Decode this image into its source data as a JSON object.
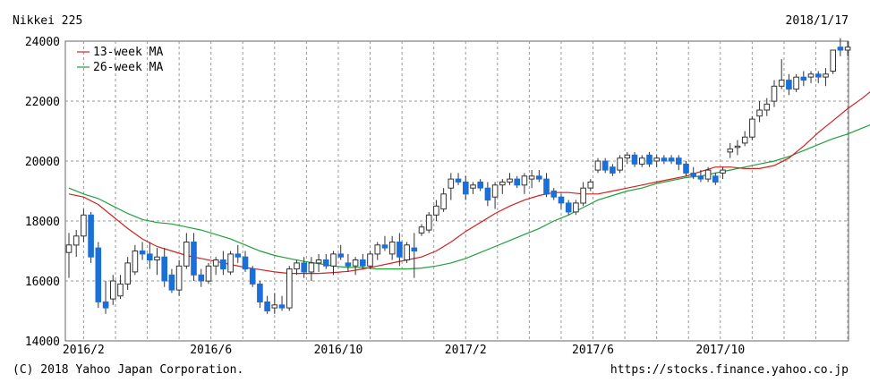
{
  "header": {
    "title": "Nikkei 225",
    "date": "2018/1/17"
  },
  "footer": {
    "copyright": "(C) 2018 Yahoo Japan Corporation.",
    "url": "https://stocks.finance.yahoo.co.jp"
  },
  "colors": {
    "up": "#ffffff",
    "down": "#1a6fd8",
    "wick": "#333333",
    "ma13": "#d42020",
    "ma26": "#1fa03c",
    "grid": "#9a9a9a"
  },
  "chart_data": {
    "type": "candlestick",
    "title": "Nikkei 225",
    "ylim": [
      14000,
      24000
    ],
    "yticks": [
      14000,
      16000,
      18000,
      20000,
      22000,
      24000
    ],
    "yticklabels": [
      "14000",
      "16000",
      "18000",
      "20000",
      "22000",
      "24000"
    ],
    "xticklabels": [
      "2016/2",
      "2016/6",
      "2016/10",
      "2017/2",
      "2017/6",
      "2017/10"
    ],
    "grid": true,
    "legend_position": "top-left",
    "legend": [
      "13-week MA",
      "26-week MA"
    ],
    "candles": [
      [
        16950,
        17600,
        16100,
        17200
      ],
      [
        17200,
        17700,
        16800,
        17500
      ],
      [
        17500,
        18400,
        17300,
        18200
      ],
      [
        18200,
        18300,
        16600,
        16800
      ],
      [
        17100,
        17300,
        15100,
        15300
      ],
      [
        15300,
        16000,
        14900,
        15100
      ],
      [
        15400,
        16200,
        15200,
        16000
      ],
      [
        15500,
        16200,
        15400,
        15900
      ],
      [
        15900,
        16800,
        15700,
        16600
      ],
      [
        16300,
        17200,
        16200,
        17000
      ],
      [
        17000,
        17300,
        16700,
        16900
      ],
      [
        16900,
        17300,
        16400,
        16700
      ],
      [
        16700,
        17100,
        16200,
        16800
      ],
      [
        16800,
        17100,
        15800,
        16000
      ],
      [
        16200,
        16400,
        15600,
        15700
      ],
      [
        15700,
        16700,
        15500,
        16500
      ],
      [
        16500,
        17600,
        16400,
        17300
      ],
      [
        17300,
        17600,
        16000,
        16200
      ],
      [
        16200,
        16400,
        15800,
        16000
      ],
      [
        16000,
        16600,
        15900,
        16500
      ],
      [
        16500,
        16800,
        16200,
        16700
      ],
      [
        16700,
        17000,
        16200,
        16400
      ],
      [
        16300,
        17000,
        16200,
        16900
      ],
      [
        16900,
        17200,
        16600,
        16800
      ],
      [
        16800,
        17000,
        16300,
        16400
      ],
      [
        16400,
        16500,
        15800,
        15900
      ],
      [
        15900,
        16000,
        15100,
        15300
      ],
      [
        15300,
        15500,
        14900,
        15000
      ],
      [
        15100,
        15600,
        14900,
        15200
      ],
      [
        15200,
        15500,
        15000,
        15100
      ],
      [
        15100,
        16500,
        15000,
        16400
      ],
      [
        16400,
        16700,
        16200,
        16600
      ],
      [
        16600,
        16800,
        16100,
        16300
      ],
      [
        16300,
        16800,
        16000,
        16600
      ],
      [
        16600,
        16900,
        16300,
        16700
      ],
      [
        16700,
        16900,
        16400,
        16500
      ],
      [
        16500,
        17000,
        16200,
        16900
      ],
      [
        16900,
        17200,
        16700,
        16800
      ],
      [
        16600,
        16900,
        16300,
        16500
      ],
      [
        16500,
        16800,
        16200,
        16700
      ],
      [
        16700,
        16900,
        16400,
        16500
      ],
      [
        16500,
        17000,
        16400,
        16900
      ],
      [
        16900,
        17300,
        16700,
        17200
      ],
      [
        17200,
        17500,
        17000,
        17100
      ],
      [
        16900,
        17500,
        16700,
        17300
      ],
      [
        17300,
        17600,
        16500,
        16800
      ],
      [
        16700,
        17300,
        16600,
        17200
      ],
      [
        17100,
        17600,
        16100,
        17000
      ],
      [
        17600,
        17900,
        17500,
        17800
      ],
      [
        17700,
        18300,
        17600,
        18200
      ],
      [
        18200,
        18700,
        18000,
        18500
      ],
      [
        18400,
        19100,
        18300,
        18900
      ],
      [
        19100,
        19600,
        18700,
        19400
      ],
      [
        19400,
        19600,
        19200,
        19300
      ],
      [
        19300,
        19500,
        18700,
        18900
      ],
      [
        19100,
        19300,
        18900,
        19200
      ],
      [
        19300,
        19400,
        19000,
        19100
      ],
      [
        19100,
        19300,
        18500,
        18700
      ],
      [
        18800,
        19300,
        18400,
        19200
      ],
      [
        19200,
        19400,
        18900,
        19300
      ],
      [
        19300,
        19600,
        19200,
        19400
      ],
      [
        19400,
        19500,
        19100,
        19200
      ],
      [
        19200,
        19600,
        18900,
        19500
      ],
      [
        19400,
        19700,
        19100,
        19500
      ],
      [
        19500,
        19700,
        19300,
        19400
      ],
      [
        19400,
        19600,
        18800,
        18900
      ],
      [
        19000,
        19100,
        18700,
        18800
      ],
      [
        18800,
        18900,
        18400,
        18600
      ],
      [
        18600,
        18700,
        18200,
        18300
      ],
      [
        18300,
        18700,
        18200,
        18600
      ],
      [
        18600,
        19300,
        18500,
        19100
      ],
      [
        19100,
        19400,
        19000,
        19300
      ],
      [
        19700,
        20100,
        19600,
        20000
      ],
      [
        20000,
        20100,
        19600,
        19700
      ],
      [
        19800,
        19900,
        19500,
        19600
      ],
      [
        19700,
        20200,
        19600,
        20100
      ],
      [
        20100,
        20300,
        19900,
        20200
      ],
      [
        20200,
        20300,
        19800,
        19900
      ],
      [
        19900,
        20200,
        19800,
        20100
      ],
      [
        20200,
        20300,
        19800,
        19900
      ],
      [
        20000,
        20200,
        19800,
        20100
      ],
      [
        20100,
        20200,
        19900,
        20000
      ],
      [
        20100,
        20200,
        19900,
        20000
      ],
      [
        20100,
        20200,
        19700,
        19900
      ],
      [
        19900,
        20000,
        19500,
        19600
      ],
      [
        19600,
        19800,
        19400,
        19500
      ],
      [
        19500,
        19700,
        19300,
        19400
      ],
      [
        19400,
        19800,
        19300,
        19700
      ],
      [
        19500,
        19600,
        19200,
        19300
      ],
      [
        19600,
        19800,
        19400,
        19700
      ],
      [
        20300,
        20600,
        20100,
        20400
      ],
      [
        20500,
        20700,
        20200,
        20500
      ],
      [
        20600,
        21000,
        20500,
        20800
      ],
      [
        20800,
        21500,
        20700,
        21400
      ],
      [
        21500,
        22000,
        21300,
        21700
      ],
      [
        21700,
        22100,
        21500,
        21900
      ],
      [
        22000,
        22700,
        21800,
        22500
      ],
      [
        22500,
        23400,
        22400,
        22700
      ],
      [
        22700,
        22900,
        22200,
        22400
      ],
      [
        22400,
        22900,
        22300,
        22800
      ],
      [
        22800,
        23000,
        22500,
        22700
      ],
      [
        22800,
        23000,
        22600,
        22900
      ],
      [
        22900,
        23000,
        22600,
        22800
      ],
      [
        22800,
        23100,
        22500,
        22900
      ],
      [
        23000,
        23700,
        22900,
        23700
      ],
      [
        23800,
        24100,
        23500,
        23700
      ],
      [
        23700,
        24000,
        23500,
        23800
      ]
    ],
    "ma13": [
      [
        0,
        18900
      ],
      [
        2,
        18800
      ],
      [
        4,
        18550
      ],
      [
        6,
        18150
      ],
      [
        8,
        17750
      ],
      [
        10,
        17400
      ],
      [
        12,
        17150
      ],
      [
        14,
        17000
      ],
      [
        16,
        16850
      ],
      [
        18,
        16750
      ],
      [
        20,
        16650
      ],
      [
        22,
        16550
      ],
      [
        24,
        16450
      ],
      [
        26,
        16380
      ],
      [
        28,
        16300
      ],
      [
        30,
        16250
      ],
      [
        32,
        16250
      ],
      [
        34,
        16250
      ],
      [
        36,
        16280
      ],
      [
        38,
        16320
      ],
      [
        40,
        16400
      ],
      [
        42,
        16500
      ],
      [
        44,
        16600
      ],
      [
        46,
        16700
      ],
      [
        48,
        16800
      ],
      [
        50,
        17000
      ],
      [
        52,
        17300
      ],
      [
        54,
        17650
      ],
      [
        56,
        17950
      ],
      [
        58,
        18250
      ],
      [
        60,
        18500
      ],
      [
        62,
        18700
      ],
      [
        64,
        18850
      ],
      [
        66,
        18950
      ],
      [
        68,
        18950
      ],
      [
        70,
        18900
      ],
      [
        72,
        18900
      ],
      [
        74,
        19000
      ],
      [
        76,
        19100
      ],
      [
        78,
        19200
      ],
      [
        80,
        19300
      ],
      [
        82,
        19400
      ],
      [
        84,
        19500
      ],
      [
        86,
        19650
      ],
      [
        88,
        19800
      ],
      [
        90,
        19800
      ],
      [
        92,
        19750
      ],
      [
        94,
        19750
      ],
      [
        96,
        19850
      ],
      [
        98,
        20100
      ],
      [
        100,
        20500
      ],
      [
        102,
        20950
      ],
      [
        104,
        21350
      ],
      [
        106,
        21750
      ],
      [
        108,
        22100
      ],
      [
        110,
        22500
      ]
    ],
    "ma26": [
      [
        0,
        19100
      ],
      [
        2,
        18900
      ],
      [
        4,
        18750
      ],
      [
        6,
        18500
      ],
      [
        8,
        18250
      ],
      [
        10,
        18050
      ],
      [
        12,
        17950
      ],
      [
        14,
        17900
      ],
      [
        16,
        17800
      ],
      [
        18,
        17700
      ],
      [
        20,
        17550
      ],
      [
        22,
        17400
      ],
      [
        24,
        17200
      ],
      [
        26,
        17000
      ],
      [
        28,
        16850
      ],
      [
        30,
        16750
      ],
      [
        32,
        16650
      ],
      [
        34,
        16580
      ],
      [
        36,
        16500
      ],
      [
        38,
        16450
      ],
      [
        40,
        16450
      ],
      [
        42,
        16400
      ],
      [
        44,
        16400
      ],
      [
        46,
        16400
      ],
      [
        48,
        16430
      ],
      [
        50,
        16500
      ],
      [
        52,
        16600
      ],
      [
        54,
        16750
      ],
      [
        56,
        16950
      ],
      [
        58,
        17150
      ],
      [
        60,
        17350
      ],
      [
        62,
        17550
      ],
      [
        64,
        17750
      ],
      [
        66,
        18000
      ],
      [
        68,
        18200
      ],
      [
        70,
        18450
      ],
      [
        72,
        18700
      ],
      [
        74,
        18850
      ],
      [
        76,
        19000
      ],
      [
        78,
        19100
      ],
      [
        80,
        19250
      ],
      [
        82,
        19350
      ],
      [
        84,
        19450
      ],
      [
        86,
        19500
      ],
      [
        88,
        19600
      ],
      [
        90,
        19700
      ],
      [
        92,
        19800
      ],
      [
        94,
        19900
      ],
      [
        96,
        20000
      ],
      [
        98,
        20150
      ],
      [
        100,
        20350
      ],
      [
        102,
        20550
      ],
      [
        104,
        20750
      ],
      [
        106,
        20900
      ],
      [
        108,
        21100
      ],
      [
        110,
        21300
      ]
    ]
  }
}
